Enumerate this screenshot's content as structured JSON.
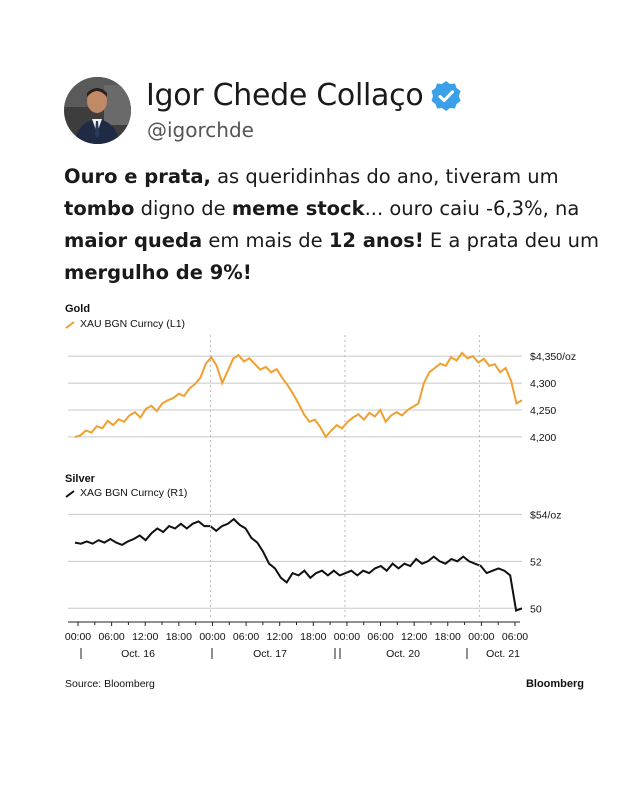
{
  "profile": {
    "name": "Igor Chede Collaço",
    "handle": "@igorchde"
  },
  "post": {
    "p1": "Ouro e prata,",
    "p2": " as queridinhas do ano, tiveram um ",
    "p3": "tombo",
    "p4": " digno de ",
    "p5": "meme stock",
    "p6": "... ouro caiu -6,3%, na ",
    "p7": "maior queda",
    "p8": " em mais de ",
    "p9": "12 anos!",
    "p10": " E a prata deu um ",
    "p11": "mergulho de 9%!"
  },
  "colors": {
    "gold": "#f0a030",
    "silver": "#111111",
    "verified": "#3aa0e8"
  },
  "chart_data": [
    {
      "type": "line",
      "title": "Gold",
      "legend": "XAU BGN Curncy (L1)",
      "y_ticks": [
        "$4,350/oz",
        "4,300",
        "4,250",
        "4,200"
      ],
      "y_tick_values": [
        4350,
        4300,
        4250,
        4200
      ],
      "ylim": [
        4185,
        4380
      ],
      "grid": "horizontal",
      "series": [
        {
          "values": [
            4200,
            4203,
            4212,
            4208,
            4220,
            4216,
            4230,
            4222,
            4233,
            4228,
            4240,
            4246,
            4236,
            4252,
            4258,
            4248,
            4262,
            4268,
            4272,
            4280,
            4276,
            4290,
            4298,
            4310,
            4336,
            4348,
            4332,
            4300,
            4322,
            4345,
            4352,
            4340,
            4346,
            4335,
            4325,
            4330,
            4320,
            4326,
            4310,
            4296,
            4280,
            4262,
            4242,
            4228,
            4232,
            4218,
            4200,
            4212,
            4222,
            4216,
            4228,
            4236,
            4242,
            4232,
            4245,
            4238,
            4250,
            4228,
            4240,
            4246,
            4240,
            4250,
            4256,
            4262,
            4300,
            4320,
            4328,
            4336,
            4332,
            4348,
            4342,
            4356,
            4346,
            4350,
            4338,
            4345,
            4332,
            4335,
            4320,
            4328,
            4304,
            4262,
            4268
          ]
        }
      ]
    },
    {
      "type": "line",
      "title": "Silver",
      "legend": "XAG BGN Curncy (R1)",
      "y_ticks": [
        "$54/oz",
        "52",
        "50"
      ],
      "y_tick_values": [
        54,
        52,
        50
      ],
      "ylim": [
        49.5,
        54.4
      ],
      "grid": "horizontal",
      "series": [
        {
          "values": [
            52.8,
            52.75,
            52.85,
            52.75,
            52.9,
            52.8,
            52.95,
            52.8,
            52.7,
            52.85,
            52.95,
            53.1,
            52.9,
            53.2,
            53.4,
            53.25,
            53.5,
            53.4,
            53.6,
            53.4,
            53.6,
            53.7,
            53.5,
            53.5,
            53.3,
            53.5,
            53.6,
            53.8,
            53.55,
            53.4,
            53.0,
            52.8,
            52.4,
            51.9,
            51.7,
            51.3,
            51.1,
            51.5,
            51.4,
            51.6,
            51.3,
            51.5,
            51.6,
            51.4,
            51.6,
            51.4,
            51.5,
            51.6,
            51.4,
            51.6,
            51.5,
            51.7,
            51.8,
            51.6,
            51.9,
            51.7,
            51.9,
            51.8,
            52.1,
            51.9,
            52.0,
            52.2,
            52.0,
            51.9,
            52.1,
            52.0,
            52.2,
            52.0,
            51.9,
            51.8,
            51.5,
            51.6,
            51.7,
            51.6,
            51.4,
            49.9,
            50.0
          ]
        }
      ]
    }
  ],
  "x_axis": {
    "ticks": [
      "00:00",
      "06:00",
      "12:00",
      "18:00",
      "00:00",
      "06:00",
      "12:00",
      "18:00",
      "00:00",
      "06:00",
      "12:00",
      "18:00",
      "00:00",
      "06:00"
    ],
    "days": [
      "Oct. 16",
      "Oct. 17",
      "Oct. 20",
      "Oct. 21"
    ]
  },
  "footer": {
    "source": "Source: Bloomberg",
    "brand": "Bloomberg"
  }
}
